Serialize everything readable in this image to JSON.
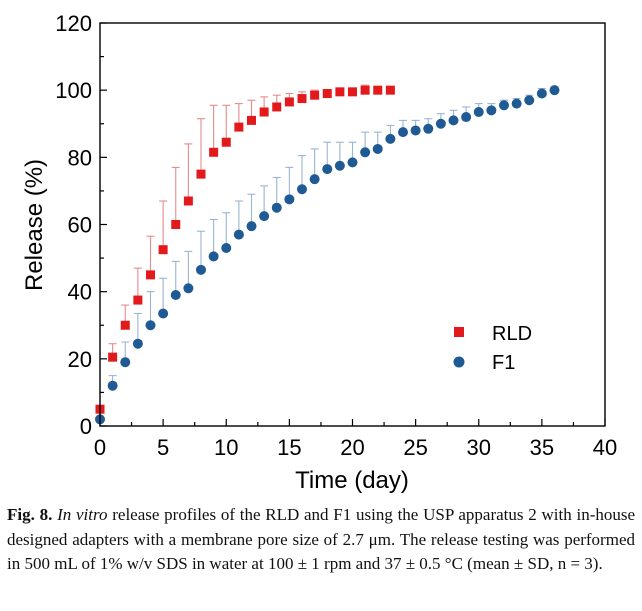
{
  "chart_data": {
    "type": "scatter",
    "xlabel": "Time (day)",
    "ylabel": "Release (%)",
    "xlim": [
      0,
      40
    ],
    "ylim": [
      0,
      120
    ],
    "xticks": [
      0,
      5,
      10,
      15,
      20,
      25,
      30,
      35,
      40
    ],
    "yticks": [
      0,
      20,
      40,
      60,
      80,
      100,
      120
    ],
    "legend_position": "right-middle",
    "series": [
      {
        "name": "RLD",
        "marker": "square",
        "color": "#e31a1c",
        "errorbar_color": "#e58b8b",
        "x": [
          0,
          1,
          2,
          3,
          4,
          5,
          6,
          7,
          8,
          9,
          10,
          11,
          12,
          13,
          14,
          15,
          16,
          17,
          18,
          19,
          20,
          21,
          22,
          23
        ],
        "y": [
          5,
          20.5,
          30,
          37.5,
          45,
          52.5,
          60,
          67,
          75,
          81.5,
          84.5,
          89,
          91,
          93.5,
          95,
          96.5,
          97.5,
          98.5,
          99,
          99.5,
          99.5,
          100,
          100,
          100
        ],
        "sd": [
          0,
          4,
          6,
          9.5,
          11.5,
          14.5,
          17,
          17,
          16.5,
          14,
          11,
          7,
          6,
          4.5,
          3.5,
          2.5,
          2,
          1.5,
          1,
          1,
          1,
          1.5,
          1,
          1
        ]
      },
      {
        "name": "F1",
        "marker": "circle",
        "color": "#1f5a94",
        "errorbar_color": "#9ab4d4",
        "x": [
          0,
          1,
          2,
          3,
          4,
          5,
          6,
          7,
          8,
          9,
          10,
          11,
          12,
          13,
          14,
          15,
          16,
          17,
          18,
          19,
          20,
          21,
          22,
          23,
          24,
          25,
          26,
          27,
          28,
          29,
          30,
          31,
          32,
          33,
          34,
          35,
          36
        ],
        "y": [
          2,
          12,
          19,
          24.5,
          30,
          33.5,
          39,
          41,
          46.5,
          50.5,
          53,
          57,
          59.5,
          62.5,
          65,
          67.5,
          70.5,
          73.5,
          76.5,
          77.5,
          78.5,
          81.5,
          82.5,
          85.5,
          87.5,
          88,
          88.5,
          90,
          91,
          92,
          93.5,
          94,
          95.5,
          96,
          97,
          99,
          100
        ],
        "sd": [
          0,
          3,
          6,
          9,
          10,
          10.5,
          10,
          11,
          11.5,
          11,
          10.5,
          10,
          9.5,
          9,
          9,
          9.5,
          10,
          9,
          8,
          7,
          6,
          6,
          5,
          4,
          3.5,
          3,
          3,
          3,
          3,
          3,
          2.5,
          2,
          1.5,
          1.5,
          1.5,
          1.5,
          1
        ]
      }
    ]
  },
  "caption": {
    "label": "Fig. 8.",
    "italic": "In vitro",
    "text": " release profiles of the RLD and F1 using the USP apparatus 2 with in-house designed adapters with a membrane pore size of 2.7 μm. The release testing was performed in 500 mL of 1% w/v SDS in water at 100 ± 1 rpm and 37 ± 0.5 °C (mean ± SD, n = 3)."
  }
}
